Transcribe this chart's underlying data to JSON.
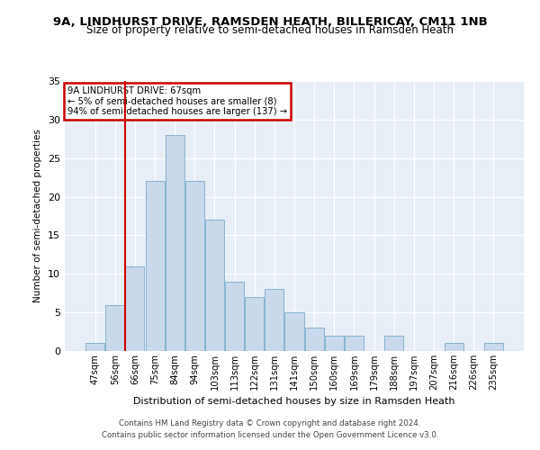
{
  "title1": "9A, LINDHURST DRIVE, RAMSDEN HEATH, BILLERICAY, CM11 1NB",
  "title2": "Size of property relative to semi-detached houses in Ramsden Heath",
  "xlabel": "Distribution of semi-detached houses by size in Ramsden Heath",
  "ylabel": "Number of semi-detached properties",
  "footnote1": "Contains HM Land Registry data © Crown copyright and database right 2024.",
  "footnote2": "Contains public sector information licensed under the Open Government Licence v3.0.",
  "bin_labels": [
    "47sqm",
    "56sqm",
    "66sqm",
    "75sqm",
    "84sqm",
    "94sqm",
    "103sqm",
    "113sqm",
    "122sqm",
    "131sqm",
    "141sqm",
    "150sqm",
    "160sqm",
    "169sqm",
    "179sqm",
    "188sqm",
    "197sqm",
    "207sqm",
    "216sqm",
    "226sqm",
    "235sqm"
  ],
  "bar_values": [
    1,
    6,
    11,
    22,
    28,
    22,
    17,
    9,
    7,
    8,
    5,
    3,
    2,
    2,
    0,
    2,
    0,
    0,
    1,
    0,
    1
  ],
  "bar_color": "#c9d9ea",
  "bar_edge_color": "#89b4d0",
  "annotation_title": "9A LINDHURST DRIVE: 67sqm",
  "annotation_line1": "← 5% of semi-detached houses are smaller (8)",
  "annotation_line2": "94% of semi-detached houses are larger (137) →",
  "annotation_box_facecolor": "#ffffff",
  "annotation_box_edgecolor": "#cc0000",
  "highlight_line_color": "#cc0000",
  "ylim": [
    0,
    35
  ],
  "yticks": [
    0,
    5,
    10,
    15,
    20,
    25,
    30,
    35
  ],
  "bg_color": "#ffffff",
  "plot_bg_color": "#e8eef5",
  "grid_color": "#ffffff",
  "title1_fontsize": 9.5,
  "title2_fontsize": 8.5
}
